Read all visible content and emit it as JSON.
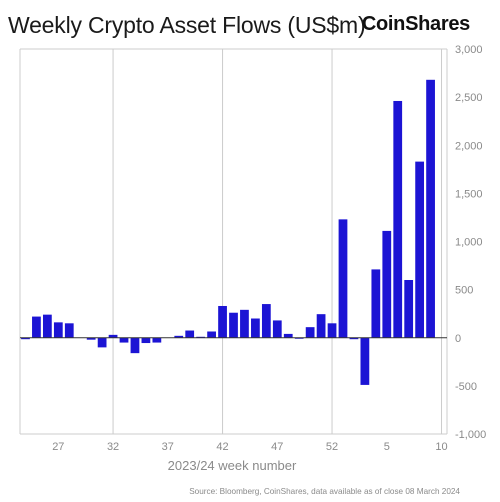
{
  "header": {
    "title": "Weekly Crypto Asset Flows (US$m)",
    "brand": "CoinShares"
  },
  "footer": {
    "source": "Source: Bloomberg, CoinShares,  data available as of close 08 March 2024"
  },
  "colors": {
    "bar": "#1c14d4",
    "grid": "#cccccc",
    "axis_text": "#8a8a8a"
  },
  "chart_data": {
    "type": "bar",
    "title": "Weekly Crypto Asset Flows (US$m)",
    "xlabel": "2023/24 week number",
    "ylabel": "",
    "ylim": [
      -1000,
      3000
    ],
    "yticks": [
      3000,
      2500,
      2000,
      1500,
      1000,
      500,
      0,
      -500,
      -1000
    ],
    "ytick_labels": [
      "3,000",
      "2,500",
      "2,000",
      "1,500",
      "1,000",
      "500",
      "0",
      "-500",
      "-1,000"
    ],
    "xtick_labels": [
      {
        "index": 3,
        "label": "27"
      },
      {
        "index": 8,
        "label": "32"
      },
      {
        "index": 13,
        "label": "37"
      },
      {
        "index": 18,
        "label": "42"
      },
      {
        "index": 23,
        "label": "47"
      },
      {
        "index": 28,
        "label": "52"
      },
      {
        "index": 33,
        "label": "5"
      },
      {
        "index": 38,
        "label": "10"
      }
    ],
    "vgrid_indices": [
      8,
      18,
      28,
      38
    ],
    "grid": true,
    "categories": [
      "24",
      "25",
      "26",
      "27",
      "28",
      "29",
      "30",
      "31",
      "32",
      "33",
      "34",
      "35",
      "36",
      "37",
      "38",
      "39",
      "40",
      "41",
      "42",
      "43",
      "44",
      "45",
      "46",
      "47",
      "48",
      "49",
      "50",
      "51",
      "52",
      "1",
      "2",
      "3",
      "4",
      "5",
      "6",
      "7",
      "8",
      "9",
      "10"
    ],
    "values": [
      -15,
      220,
      240,
      160,
      150,
      0,
      -20,
      -100,
      30,
      -50,
      -160,
      -55,
      -50,
      0,
      20,
      75,
      10,
      65,
      330,
      260,
      290,
      200,
      350,
      180,
      40,
      -10,
      110,
      245,
      150,
      1230,
      -15,
      -490,
      710,
      1110,
      2460,
      600,
      1830,
      2680,
      0
    ]
  }
}
